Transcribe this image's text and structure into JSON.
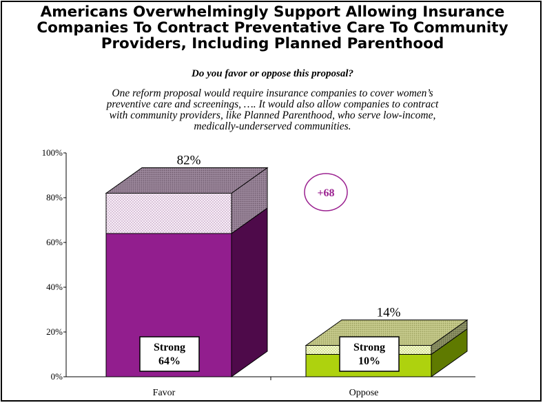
{
  "title_lines": [
    "Americans Overwhelmingly Support Allowing Insurance",
    "Companies To Contract Preventative Care To Community",
    "Providers, Including Planned Parenthood"
  ],
  "question": "Do you favor or oppose this proposal?",
  "intro_lines": [
    "One reform proposal would require insurance companies to cover women’s",
    "preventive care and screenings, …. It would also allow companies to contract",
    "with community providers, like Planned Parenthood, who serve low-income,",
    "medically-underserved communities."
  ],
  "net_label": "+68",
  "colors": {
    "favor_strong": "#921e8e",
    "favor_strong_side": "#4e0a4a",
    "favor_top": "#b890b6",
    "oppose_strong": "#aed20e",
    "oppose_strong_side": "#5f7a00",
    "oppose_top": "#c8cb8e",
    "net_circle": "#9a1f8f"
  },
  "chart_data": {
    "type": "bar",
    "stacked": true,
    "three_d": true,
    "categories": [
      "Favor",
      "Oppose"
    ],
    "series": [
      {
        "name": "Strong",
        "values": [
          64,
          10
        ]
      },
      {
        "values": [
          18,
          4
        ]
      }
    ],
    "totals": [
      82,
      14
    ],
    "total_labels": [
      "82%",
      "14%"
    ],
    "strong_labels": [
      {
        "title": "Strong",
        "value": "64%"
      },
      {
        "title": "Strong",
        "value": "10%"
      }
    ],
    "ylim": [
      0,
      100
    ],
    "yticks": [
      0,
      20,
      40,
      60,
      80,
      100
    ],
    "ytick_labels": [
      "0%",
      "20%",
      "40%",
      "60%",
      "80%",
      "100%"
    ],
    "grid": false,
    "legend": "none"
  }
}
